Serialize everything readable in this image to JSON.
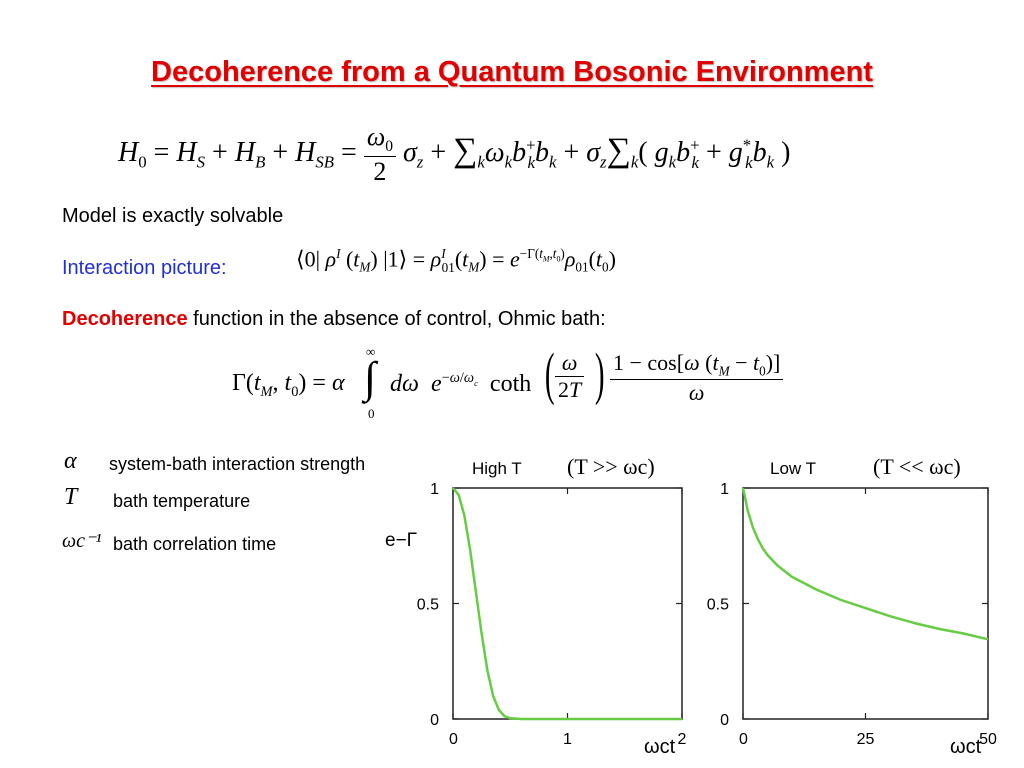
{
  "slide": {
    "title": "Decoherence from a Quantum Bosonic Environment",
    "model_text": "Model is exactly solvable",
    "interaction_label": "Interaction picture:",
    "decoherence_word": "Decoherence",
    "decoherence_rest": " function in the absence of control, Ohmic bath:"
  },
  "equations": {
    "hamiltonian": "H0 = HS + HB + HSB = (ω0/2) σz + Σk ωk bk+ bk + σz Σk (gk bk+ + gk* bk)",
    "interaction": "⟨0| ρI(tM) |1⟩ = ρI01(tM) = e^(−Γ(tM,t0)) ρ01(t0)",
    "gamma": "Γ(tM,t0) = α ∫0∞ dω e^(−ω/ωc) coth(ω/2T) [1 − cos[ω(tM − t0)]] / ω"
  },
  "legend": [
    {
      "symbol": "α",
      "text": "system-bath interaction strength"
    },
    {
      "symbol": "T",
      "text": "bath temperature"
    },
    {
      "symbol": "ωc⁻¹",
      "text": "bath correlation time"
    }
  ],
  "colors": {
    "title": "#e00000",
    "blue": "#1f2fd6",
    "curve": "#66cc44"
  },
  "chart_data": [
    {
      "type": "line",
      "title": "High T",
      "condition": "(T >> ωc)",
      "ylabel": "e−Γ",
      "xlabel": "ωct",
      "xlim": [
        0,
        2
      ],
      "ylim": [
        0,
        1
      ],
      "xticks": [
        "0",
        "1",
        "2"
      ],
      "yticks": [
        "0",
        "0.5",
        "1"
      ],
      "series": [
        {
          "x": [
            0,
            0.05,
            0.1,
            0.15,
            0.2,
            0.25,
            0.3,
            0.35,
            0.4,
            0.45,
            0.5,
            0.6,
            0.8,
            1.0,
            1.5,
            2.0
          ],
          "y": [
            1.0,
            0.97,
            0.88,
            0.73,
            0.55,
            0.37,
            0.21,
            0.1,
            0.04,
            0.012,
            0.003,
            0.0,
            0.0,
            0.0,
            0.0,
            0.0
          ]
        }
      ]
    },
    {
      "type": "line",
      "title": "Low T",
      "condition": "(T << ωc)",
      "xlabel": "ωct",
      "xlim": [
        0,
        50
      ],
      "ylim": [
        0,
        1
      ],
      "xticks": [
        "0",
        "25",
        "50"
      ],
      "yticks": [
        "0",
        "0.5",
        "1"
      ],
      "series": [
        {
          "x": [
            0,
            1,
            2,
            3,
            4,
            5,
            7,
            10,
            15,
            20,
            25,
            30,
            35,
            40,
            45,
            50
          ],
          "y": [
            1.0,
            0.9,
            0.83,
            0.78,
            0.74,
            0.71,
            0.665,
            0.615,
            0.56,
            0.515,
            0.48,
            0.445,
            0.415,
            0.39,
            0.37,
            0.345
          ]
        }
      ]
    }
  ]
}
